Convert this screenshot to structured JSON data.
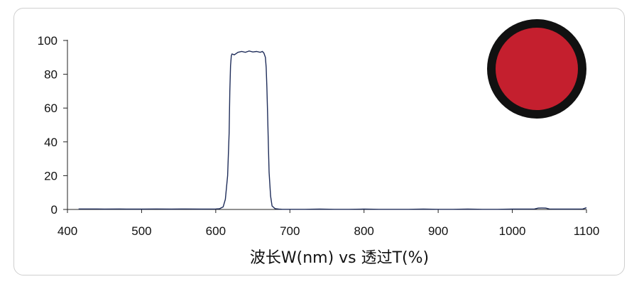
{
  "chart_data": {
    "type": "line",
    "title": "",
    "xlabel": "波长W(nm) vs 透过T(%)",
    "ylabel": "",
    "xlim": [
      400,
      1100
    ],
    "ylim": [
      0,
      100
    ],
    "x_ticks": [
      400,
      500,
      600,
      700,
      800,
      900,
      1000,
      1100
    ],
    "y_ticks": [
      0,
      20,
      40,
      60,
      80,
      100
    ],
    "grid": false,
    "legend": "none",
    "line_color": "#1f2d5a",
    "swatch_color": "#c41f2e",
    "swatch_ring_color": "#111111",
    "series": [
      {
        "x": [
          415,
          440,
          450,
          470,
          480,
          500,
          520,
          540,
          560,
          580,
          600,
          605,
          610,
          613,
          616,
          618,
          619,
          620,
          621,
          622,
          625,
          630,
          635,
          640,
          645,
          650,
          655,
          660,
          663,
          665,
          667,
          668,
          669,
          670,
          671,
          672,
          674,
          676,
          680,
          685,
          690,
          700,
          710,
          720,
          740,
          760,
          780,
          800,
          820,
          840,
          860,
          880,
          900,
          920,
          940,
          960,
          980,
          1000,
          1020,
          1030,
          1035,
          1040,
          1045,
          1050,
          1060,
          1080,
          1095,
          1100
        ],
        "y": [
          0.3,
          0.3,
          0.2,
          0.3,
          0.2,
          0.2,
          0.3,
          0.2,
          0.3,
          0.2,
          0.3,
          0.4,
          1.5,
          6,
          20,
          45,
          70,
          85,
          91,
          92,
          91.5,
          93,
          93.5,
          93,
          93.8,
          93.2,
          93.5,
          93,
          93.5,
          92.5,
          90,
          84,
          72,
          55,
          38,
          22,
          8,
          2,
          0.5,
          0.2,
          0.1,
          0.1,
          0.1,
          0.1,
          0.2,
          0.1,
          0.1,
          0.2,
          0.1,
          0.1,
          0.1,
          0.2,
          0.1,
          0.1,
          0.2,
          0.1,
          0.1,
          0.2,
          0.2,
          0.3,
          0.8,
          0.9,
          0.8,
          0.3,
          0.2,
          0.2,
          0.3,
          1.0
        ]
      }
    ]
  }
}
